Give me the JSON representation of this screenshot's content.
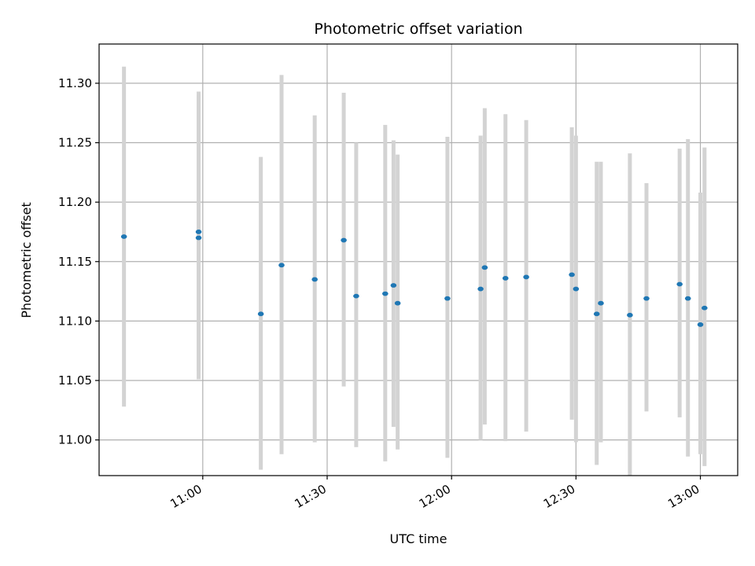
{
  "chart_data": {
    "type": "scatter",
    "title": "Photometric offset variation",
    "xlabel": "UTC time",
    "ylabel": "Photometric offset",
    "x_ticks": [
      "11:00",
      "11:30",
      "12:00",
      "12:30",
      "13:00"
    ],
    "y_ticks": [
      "11.00",
      "11.05",
      "11.10",
      "11.15",
      "11.20",
      "11.25",
      "11.30"
    ],
    "xlim": [
      "10:35",
      "13:09"
    ],
    "ylim": [
      10.97,
      11.333
    ],
    "grid": true,
    "colors": {
      "point": "#1f77b4",
      "errorbar": "#d3d3d3",
      "grid": "#b0b0b0"
    },
    "points": [
      {
        "x": "10:41",
        "y": 11.171,
        "low": 11.028,
        "high": 11.314
      },
      {
        "x": "10:59",
        "y": 11.175,
        "low": 11.058,
        "high": 11.293
      },
      {
        "x": "10:59",
        "y": 11.17,
        "low": 11.051,
        "high": 11.29
      },
      {
        "x": "11:14",
        "y": 11.106,
        "low": 10.975,
        "high": 11.238
      },
      {
        "x": "11:19",
        "y": 11.147,
        "low": 10.988,
        "high": 11.307
      },
      {
        "x": "11:27",
        "y": 11.135,
        "low": 10.998,
        "high": 11.273
      },
      {
        "x": "11:34",
        "y": 11.168,
        "low": 11.045,
        "high": 11.292
      },
      {
        "x": "11:37",
        "y": 11.121,
        "low": 10.994,
        "high": 11.25
      },
      {
        "x": "11:44",
        "y": 11.123,
        "low": 10.982,
        "high": 11.265
      },
      {
        "x": "11:46",
        "y": 11.13,
        "low": 11.011,
        "high": 11.252
      },
      {
        "x": "11:47",
        "y": 11.115,
        "low": 10.992,
        "high": 11.24
      },
      {
        "x": "11:59",
        "y": 11.119,
        "low": 10.985,
        "high": 11.255
      },
      {
        "x": "12:07",
        "y": 11.127,
        "low": 11.0,
        "high": 11.256
      },
      {
        "x": "12:08",
        "y": 11.145,
        "low": 11.013,
        "high": 11.279
      },
      {
        "x": "12:13",
        "y": 11.136,
        "low": 10.999,
        "high": 11.274
      },
      {
        "x": "12:18",
        "y": 11.137,
        "low": 11.007,
        "high": 11.269
      },
      {
        "x": "12:29",
        "y": 11.139,
        "low": 11.017,
        "high": 11.263
      },
      {
        "x": "12:30",
        "y": 11.127,
        "low": 10.998,
        "high": 11.256
      },
      {
        "x": "12:35",
        "y": 11.106,
        "low": 10.979,
        "high": 11.234
      },
      {
        "x": "12:36",
        "y": 11.115,
        "low": 10.998,
        "high": 11.234
      },
      {
        "x": "12:43",
        "y": 11.105,
        "low": 10.97,
        "high": 11.241
      },
      {
        "x": "12:47",
        "y": 11.119,
        "low": 11.024,
        "high": 11.216
      },
      {
        "x": "12:55",
        "y": 11.131,
        "low": 11.019,
        "high": 11.245
      },
      {
        "x": "12:57",
        "y": 11.119,
        "low": 10.986,
        "high": 11.253
      },
      {
        "x": "13:00",
        "y": 11.097,
        "low": 10.988,
        "high": 11.208
      },
      {
        "x": "13:01",
        "y": 11.111,
        "low": 10.978,
        "high": 11.246
      }
    ]
  }
}
